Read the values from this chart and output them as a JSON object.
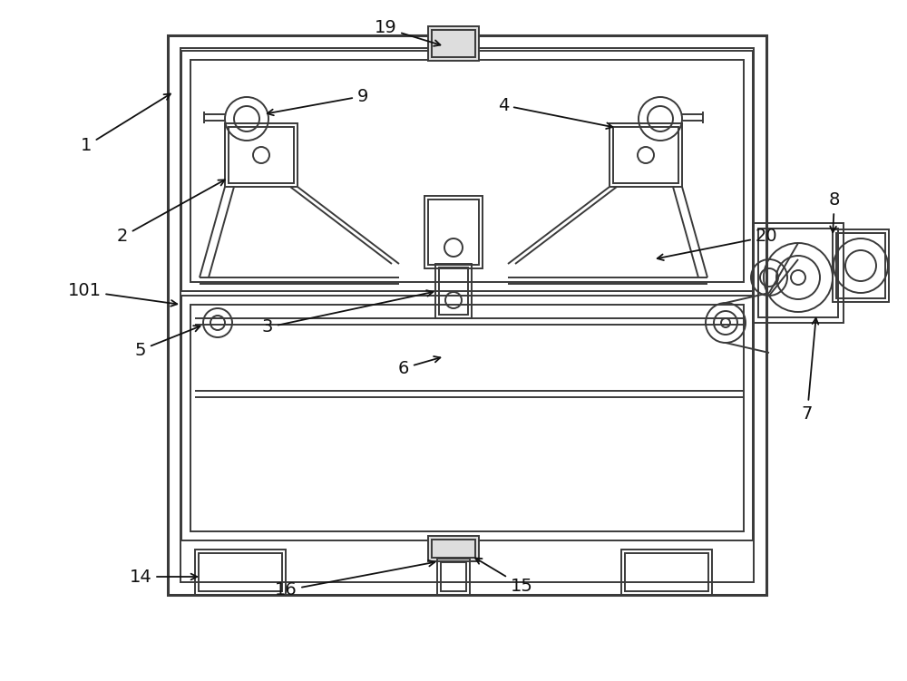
{
  "bg_color": "#ffffff",
  "lc": "#3a3a3a",
  "lw": 1.4,
  "tlw": 2.2,
  "fig_width": 10.0,
  "fig_height": 7.51
}
